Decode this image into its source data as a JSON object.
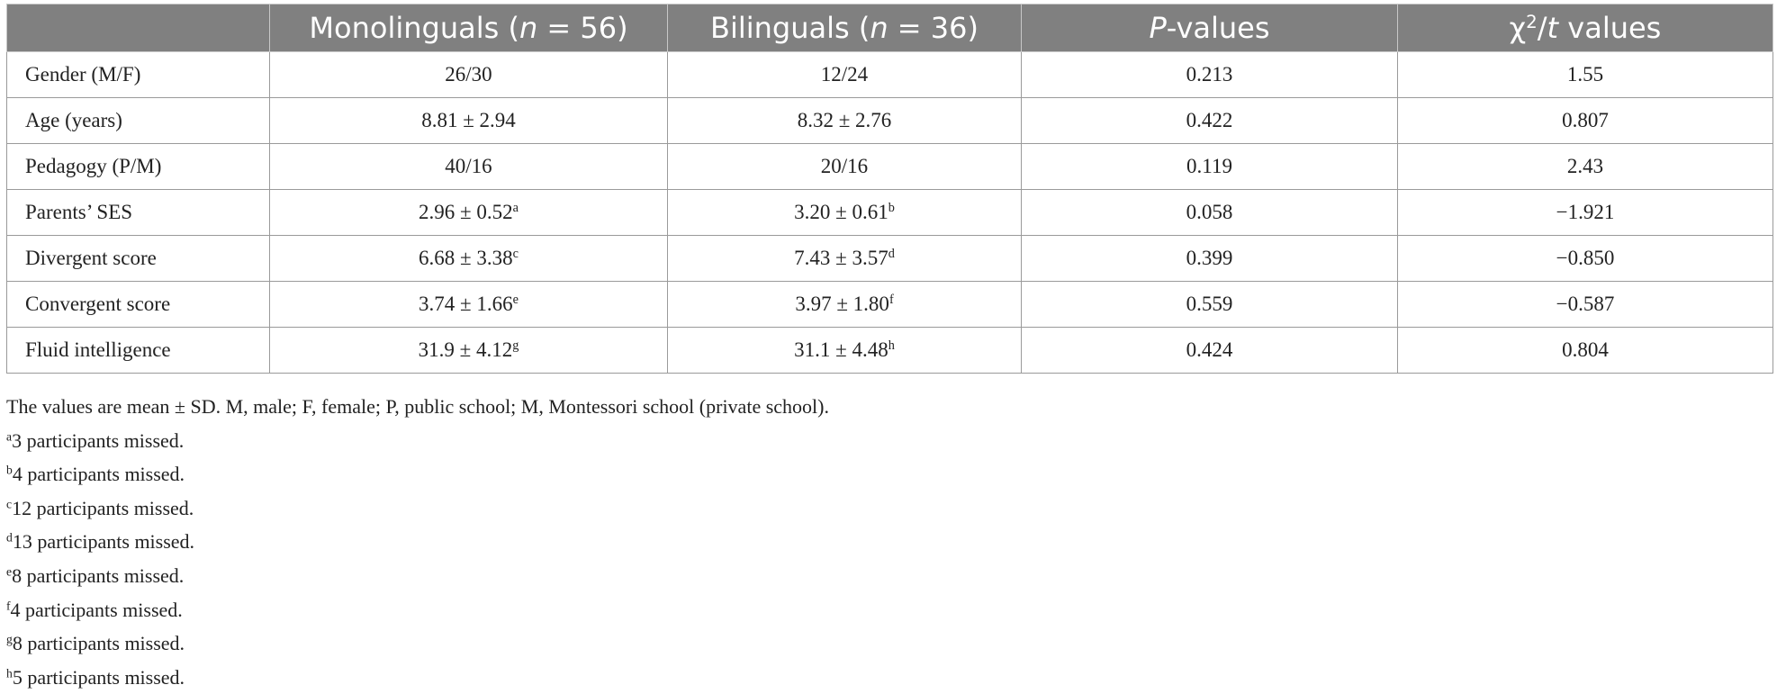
{
  "table": {
    "header": [
      [
        {
          "text": "Monolinguals ("
        },
        {
          "text": "n",
          "italic": true
        },
        {
          "text": " = 56)"
        }
      ],
      [
        {
          "text": "Bilinguals ("
        },
        {
          "text": "n",
          "italic": true
        },
        {
          "text": " = 36)"
        }
      ],
      [
        {
          "text": "P",
          "italic": true
        },
        {
          "text": "-values"
        }
      ],
      [
        {
          "text": "χ"
        },
        {
          "text": "2",
          "sup": true
        },
        {
          "text": "/"
        },
        {
          "text": "t",
          "italic": true
        },
        {
          "text": " values"
        }
      ]
    ],
    "rows": [
      {
        "label": "Gender (M/F)",
        "cells": [
          {
            "text": "26/30"
          },
          {
            "text": "12/24"
          },
          {
            "text": "0.213"
          },
          {
            "text": "1.55"
          }
        ]
      },
      {
        "label": "Age (years)",
        "cells": [
          {
            "text": "8.81 ± 2.94"
          },
          {
            "text": "8.32 ± 2.76"
          },
          {
            "text": "0.422"
          },
          {
            "text": "0.807"
          }
        ]
      },
      {
        "label": "Pedagogy (P/M)",
        "cells": [
          {
            "text": "40/16"
          },
          {
            "text": "20/16"
          },
          {
            "text": "0.119"
          },
          {
            "text": "2.43"
          }
        ]
      },
      {
        "label": "Parents’ SES",
        "cells": [
          {
            "text": "2.96 ± 0.52",
            "sup": "a"
          },
          {
            "text": "3.20 ± 0.61",
            "sup": "b"
          },
          {
            "text": "0.058"
          },
          {
            "text": "−1.921"
          }
        ]
      },
      {
        "label": "Divergent score",
        "cells": [
          {
            "text": "6.68 ± 3.38",
            "sup": "c"
          },
          {
            "text": "7.43 ± 3.57",
            "sup": "d"
          },
          {
            "text": "0.399"
          },
          {
            "text": "−0.850"
          }
        ]
      },
      {
        "label": "Convergent score",
        "cells": [
          {
            "text": "3.74 ± 1.66",
            "sup": "e"
          },
          {
            "text": "3.97 ± 1.80",
            "sup": "f"
          },
          {
            "text": "0.559"
          },
          {
            "text": "−0.587"
          }
        ]
      },
      {
        "label": "Fluid intelligence",
        "cells": [
          {
            "text": "31.9 ± 4.12",
            "sup": "g"
          },
          {
            "text": "31.1 ± 4.48",
            "sup": "h"
          },
          {
            "text": "0.424"
          },
          {
            "text": "0.804"
          }
        ]
      }
    ],
    "note": "The values are mean ± SD. M, male; F, female; P, public school; M, Montessori school (private school).",
    "footnotes": [
      {
        "mark": "a",
        "text": "3 participants missed."
      },
      {
        "mark": "b",
        "text": "4 participants missed."
      },
      {
        "mark": "c",
        "text": "12 participants missed."
      },
      {
        "mark": "d",
        "text": "13 participants missed."
      },
      {
        "mark": "e",
        "text": "8 participants missed."
      },
      {
        "mark": "f",
        "text": "4 participants missed."
      },
      {
        "mark": "g",
        "text": "8 participants missed."
      },
      {
        "mark": "h",
        "text": "5 participants missed."
      }
    ]
  }
}
